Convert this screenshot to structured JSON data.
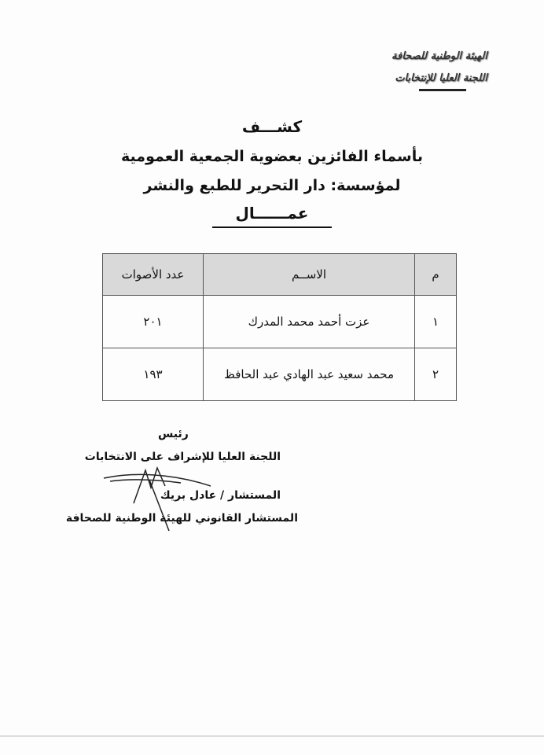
{
  "header": {
    "line1": "الهيئة الوطنية للصحافة",
    "line2": "اللجنة العليا للإنتخابات"
  },
  "titles": {
    "title": "كشـــف",
    "subtitle": "بأسماء الفائزين بعضوية الجمعية العمومية",
    "institution": "لمؤسسة: دار التحرير للطبع والنشر",
    "category": "عمــــــال"
  },
  "table": {
    "headers": [
      "م",
      "الاســم",
      "عدد الأصوات"
    ],
    "rows": [
      [
        "١",
        "عزت أحمد محمد المدرك",
        "٢٠١"
      ],
      [
        "٢",
        "محمد سعيد عبد الهادي عبد الحافظ",
        "١٩٣"
      ]
    ]
  },
  "signature": {
    "role": "رئيس",
    "committee": "اللجنة العليا للإشراف على الانتخابات",
    "name": "المستشار / عادل بريك",
    "title": "المستشار القانوني للهيئة الوطنية للصحافة"
  }
}
